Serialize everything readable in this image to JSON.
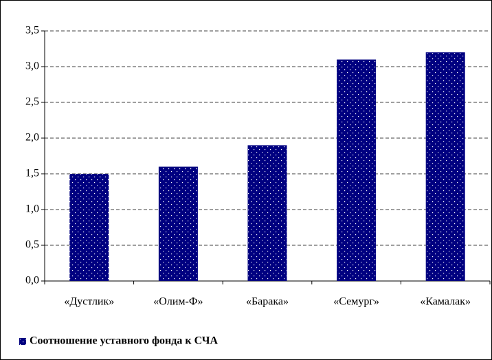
{
  "chart_data": {
    "type": "bar",
    "categories": [
      "«Дустлик»",
      "«Олим-Ф»",
      "«Барака»",
      "«Семург»",
      "«Камалак»"
    ],
    "series": [
      {
        "name": "Соотношение уставного фонда к СЧА",
        "color": "#000080",
        "values": [
          1.5,
          1.6,
          1.9,
          3.1,
          3.2
        ]
      }
    ],
    "ylim": [
      0,
      3.5
    ],
    "yticks": [
      {
        "value": 0,
        "label": "0,0"
      },
      {
        "value": 0.5,
        "label": "0,5"
      },
      {
        "value": 1,
        "label": "1,0"
      },
      {
        "value": 1.5,
        "label": "1,5"
      },
      {
        "value": 2,
        "label": "2,0"
      },
      {
        "value": 2.5,
        "label": "2,5"
      },
      {
        "value": 3,
        "label": "3,0"
      },
      {
        "value": 3.5,
        "label": "3,5"
      }
    ],
    "grid": true,
    "legend": "bottom-left"
  }
}
